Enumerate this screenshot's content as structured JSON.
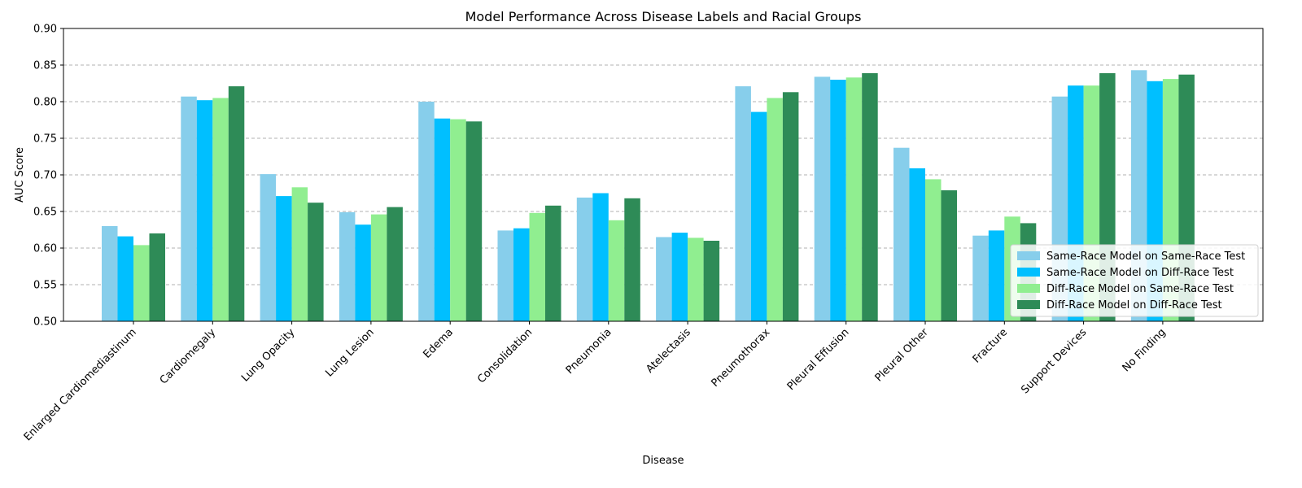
{
  "chart_data": {
    "type": "bar",
    "title": "Model Performance Across Disease Labels and Racial Groups",
    "xlabel": "Disease",
    "ylabel": "AUC Score",
    "ylim": [
      0.5,
      0.9
    ],
    "yticks": [
      "0.50",
      "0.55",
      "0.60",
      "0.65",
      "0.70",
      "0.75",
      "0.80",
      "0.85",
      "0.90"
    ],
    "grid": "y-dashed",
    "legend_position": "lower-right",
    "categories": [
      "Enlarged Cardiomediastinum",
      "Cardiomegaly",
      "Lung Opacity",
      "Lung Lesion",
      "Edema",
      "Consolidation",
      "Pneumonia",
      "Atelectasis",
      "Pneumothorax",
      "Pleural Effusion",
      "Pleural Other",
      "Fracture",
      "Support Devices",
      "No Finding"
    ],
    "series": [
      {
        "name": "Same-Race Model on Same-Race Test",
        "color": "#87ceeb",
        "values": [
          0.63,
          0.807,
          0.701,
          0.649,
          0.8,
          0.624,
          0.669,
          0.615,
          0.821,
          0.834,
          0.737,
          0.617,
          0.807,
          0.843
        ]
      },
      {
        "name": "Same-Race Model on Diff-Race Test",
        "color": "#00bfff",
        "values": [
          0.616,
          0.802,
          0.671,
          0.632,
          0.777,
          0.627,
          0.675,
          0.621,
          0.786,
          0.83,
          0.709,
          0.624,
          0.822,
          0.828
        ]
      },
      {
        "name": "Diff-Race Model on Same-Race Test",
        "color": "#90ee90",
        "values": [
          0.604,
          0.805,
          0.683,
          0.646,
          0.776,
          0.648,
          0.638,
          0.614,
          0.805,
          0.833,
          0.694,
          0.643,
          0.822,
          0.831
        ]
      },
      {
        "name": "Diff-Race Model on Diff-Race Test",
        "color": "#2e8b57",
        "values": [
          0.62,
          0.821,
          0.662,
          0.656,
          0.773,
          0.658,
          0.668,
          0.61,
          0.813,
          0.839,
          0.679,
          0.634,
          0.839,
          0.837
        ]
      }
    ]
  }
}
